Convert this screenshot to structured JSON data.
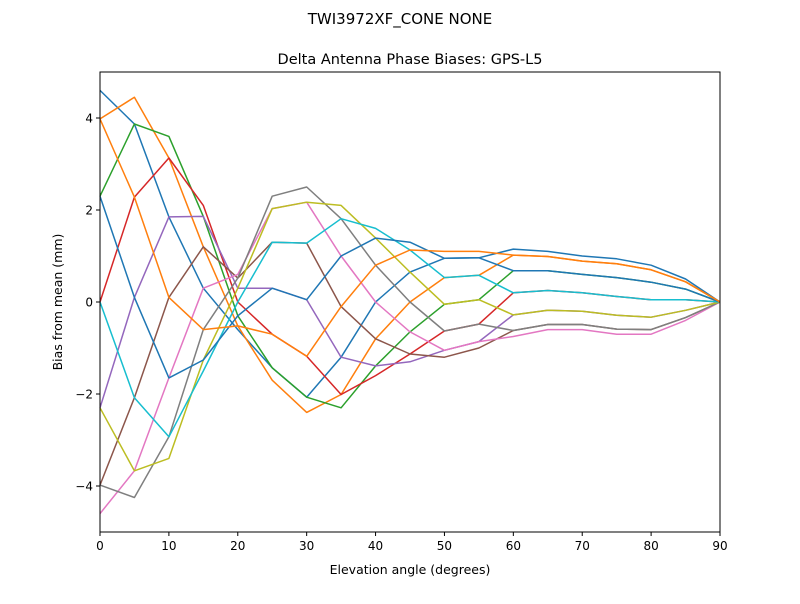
{
  "chart_data": {
    "type": "line",
    "suptitle": "TWI3972XF_CONE  NONE",
    "title": "Delta Antenna Phase Biases: GPS-L5",
    "xlabel": "Elevation angle (degrees)",
    "ylabel": "Bias from mean (mm)",
    "xlim": [
      0,
      90
    ],
    "ylim": [
      -5,
      5
    ],
    "xticks": [
      0,
      10,
      20,
      30,
      40,
      50,
      60,
      70,
      80,
      90
    ],
    "yticks": [
      -4,
      -2,
      0,
      2,
      4
    ],
    "grid": false,
    "legend": "none",
    "colors": [
      "#1f77b4",
      "#ff7f0e",
      "#2ca02c",
      "#d62728",
      "#9467bd",
      "#8c564b",
      "#e377c2",
      "#7f7f7f",
      "#bcbd22",
      "#17becf"
    ],
    "x": [
      0,
      5,
      10,
      15,
      20,
      25,
      30,
      35,
      40,
      45,
      50,
      55,
      60,
      65,
      70,
      75,
      80,
      85,
      90
    ],
    "series": [
      {
        "values": [
          4.6,
          3.87,
          1.85,
          0.3,
          -0.6,
          -1.43,
          -2.07,
          -1.2,
          0,
          0.65,
          0.95,
          0.96,
          1.15,
          1.1,
          1.0,
          0.94,
          0.8,
          0.5,
          0
        ]
      },
      {
        "values": [
          3.98,
          4.45,
          3.13,
          1.2,
          -0.52,
          -1.7,
          -2.4,
          -2.01,
          -0.8,
          0,
          0.53,
          0.58,
          1.02,
          0.99,
          0.89,
          0.83,
          0.7,
          0.44,
          0
        ]
      },
      {
        "values": [
          2.3,
          3.87,
          3.6,
          1.86,
          -0.3,
          -1.43,
          -2.07,
          -2.3,
          -1.39,
          -0.65,
          -0.05,
          0.05,
          0.68,
          0.68,
          0.6,
          0.53,
          0.43,
          0.28,
          0
        ]
      },
      {
        "values": [
          0,
          2.28,
          3.13,
          2.1,
          0,
          -0.7,
          -1.18,
          -2.01,
          -1.6,
          -1.13,
          -0.63,
          -0.48,
          0.2,
          0.25,
          0.2,
          0.12,
          0.05,
          0.05,
          0
        ]
      },
      {
        "values": [
          -2.3,
          0.1,
          1.85,
          1.86,
          0.3,
          0.3,
          0.05,
          -1.2,
          -1.39,
          -1.3,
          -1.05,
          -0.86,
          -0.28,
          -0.18,
          -0.2,
          -0.29,
          -0.33,
          -0.18,
          0
        ]
      },
      {
        "values": [
          -3.98,
          -2.08,
          0.1,
          1.2,
          0.52,
          1.3,
          1.28,
          -0.1,
          -0.8,
          -1.13,
          -1.2,
          -1.0,
          -0.62,
          -0.49,
          -0.49,
          -0.59,
          -0.6,
          -0.34,
          0
        ]
      },
      {
        "values": [
          -4.6,
          -3.67,
          -1.65,
          0.3,
          0.6,
          2.03,
          2.17,
          1.0,
          0,
          -0.65,
          -1.05,
          -0.86,
          -0.75,
          -0.6,
          -0.6,
          -0.7,
          -0.7,
          -0.4,
          0
        ]
      },
      {
        "values": [
          -3.98,
          -4.25,
          -2.93,
          -0.6,
          0.52,
          2.3,
          2.5,
          1.81,
          0.8,
          0,
          -0.63,
          -0.48,
          -0.62,
          -0.49,
          -0.49,
          -0.59,
          -0.6,
          -0.34,
          0
        ]
      },
      {
        "values": [
          -2.3,
          -3.67,
          -3.4,
          -1.26,
          0.3,
          2.03,
          2.17,
          2.1,
          1.39,
          0.65,
          -0.05,
          0.05,
          -0.28,
          -0.18,
          -0.2,
          -0.29,
          -0.33,
          -0.18,
          0
        ]
      },
      {
        "values": [
          0,
          -2.08,
          -2.93,
          -1.5,
          0,
          1.3,
          1.28,
          1.81,
          1.6,
          1.13,
          0.53,
          0.58,
          0.2,
          0.25,
          0.2,
          0.12,
          0.05,
          0.05,
          0
        ]
      },
      {
        "values": [
          2.3,
          0.1,
          -1.65,
          -1.26,
          -0.3,
          0.3,
          0.05,
          1.0,
          1.39,
          1.3,
          0.95,
          0.96,
          0.68,
          0.68,
          0.6,
          0.53,
          0.43,
          0.28,
          0
        ]
      },
      {
        "values": [
          3.98,
          2.28,
          0.1,
          -0.6,
          -0.52,
          -0.7,
          -1.18,
          -0.1,
          0.8,
          1.13,
          1.1,
          1.1,
          1.02,
          0.99,
          0.89,
          0.83,
          0.7,
          0.44,
          0
        ]
      }
    ]
  }
}
